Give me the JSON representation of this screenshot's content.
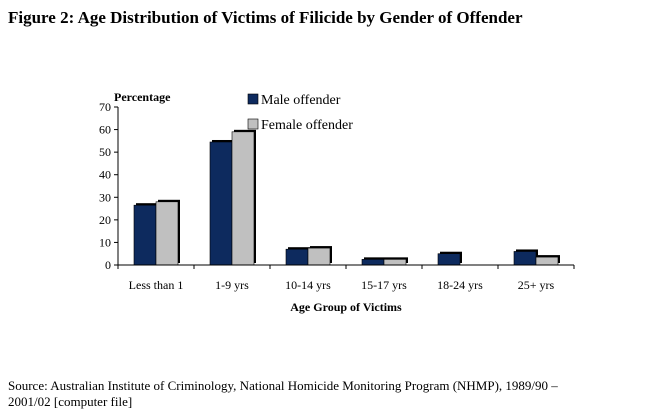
{
  "figure": {
    "title": "Figure 2: Age Distribution of Victims of Filicide by Gender of Offender",
    "source_line1": "Source: Australian Institute of Criminology, National Homicide Monitoring Program (NHMP), 1989/90 –",
    "source_line2": "2001/02 [computer file]"
  },
  "chart_data": {
    "type": "bar",
    "title": "",
    "xlabel": "Age Group of Victims",
    "ylabel": "Percentage",
    "ylim": [
      0,
      70
    ],
    "yticks": [
      0,
      10,
      20,
      30,
      40,
      50,
      60,
      70
    ],
    "categories": [
      "Less than 1",
      "1-9 yrs",
      "10-14 yrs",
      "15-17 yrs",
      "18-24 yrs",
      "25+ yrs"
    ],
    "series": [
      {
        "name": "Male offender",
        "color": "#0d2a5e",
        "values": [
          26.5,
          54.5,
          7,
          2.5,
          5,
          6
        ]
      },
      {
        "name": "Female offender",
        "color": "#c0c0c0",
        "values": [
          28,
          59,
          7.5,
          2.5,
          0,
          3.5
        ]
      }
    ],
    "legend_position": "top",
    "grid": false
  }
}
